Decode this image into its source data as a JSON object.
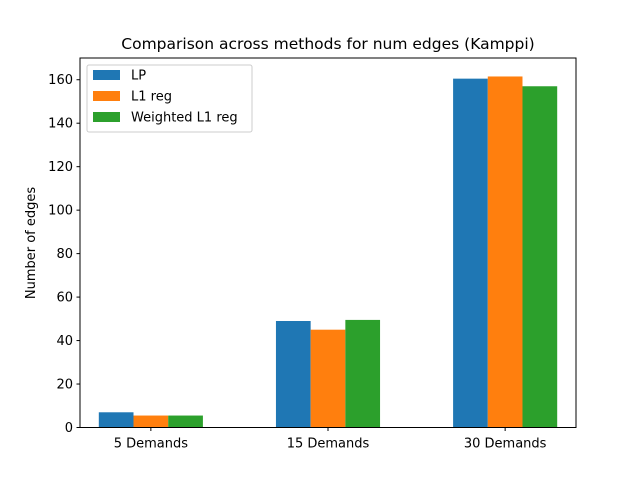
{
  "chart_data": {
    "type": "bar",
    "title": "Comparison across methods for num edges (Kamppi)",
    "xlabel": "",
    "ylabel": "Number of edges",
    "categories": [
      "5 Demands",
      "15 Demands",
      "30 Demands"
    ],
    "series": [
      {
        "name": "LP",
        "color": "#1f77b4",
        "values": [
          7,
          49,
          160.5
        ]
      },
      {
        "name": "L1 reg",
        "color": "#ff7f0e",
        "values": [
          5.5,
          45,
          161.5
        ]
      },
      {
        "name": "Weighted L1 reg",
        "color": "#2ca02c",
        "values": [
          5.5,
          49.5,
          157
        ]
      }
    ],
    "ylim": [
      0,
      170
    ],
    "yticks": [
      0,
      20,
      40,
      60,
      80,
      100,
      120,
      140,
      160
    ],
    "grid": false,
    "legend_position": "top-left"
  }
}
